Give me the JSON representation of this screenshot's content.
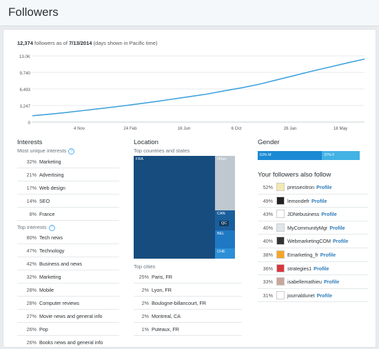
{
  "page": {
    "title": "Followers"
  },
  "summary": {
    "count": "12,374",
    "text_mid": " followers as of ",
    "date": "7/13/2014",
    "text_end": " (days shown in Pacific time)"
  },
  "chart_data": {
    "type": "line",
    "y_ticks": [
      "13.0K",
      "9,740",
      "6,493",
      "3,247",
      "0"
    ],
    "x_ticks": [
      "4 Nov",
      "24 Feb",
      "16 Jun",
      "6 Oct",
      "26 Jan",
      "18 May"
    ],
    "ylim": [
      0,
      13000
    ],
    "series": [
      {
        "values": [
          1250,
          1550,
          1900,
          2300,
          2700,
          3100,
          3550,
          4000,
          4500,
          5000,
          5500,
          6150,
          6750,
          7450,
          8300,
          9150,
          10000,
          10800,
          11600,
          12374
        ]
      }
    ],
    "color": "#3ea2dd"
  },
  "interests": {
    "title": "Interests",
    "unique_label": "Most unique interests",
    "unique": [
      {
        "pct": "32%",
        "name": "Marketing"
      },
      {
        "pct": "21%",
        "name": "Advertising"
      },
      {
        "pct": "17%",
        "name": "Web design"
      },
      {
        "pct": "14%",
        "name": "SEO"
      },
      {
        "pct": "8%",
        "name": "France"
      }
    ],
    "top_label": "Top interests",
    "top": [
      {
        "pct": "80%",
        "name": "Tech news"
      },
      {
        "pct": "47%",
        "name": "Technology"
      },
      {
        "pct": "42%",
        "name": "Business and news"
      },
      {
        "pct": "32%",
        "name": "Marketing"
      },
      {
        "pct": "28%",
        "name": "Mobile"
      },
      {
        "pct": "28%",
        "name": "Computer reviews"
      },
      {
        "pct": "27%",
        "name": "Movie news and general info"
      },
      {
        "pct": "26%",
        "name": "Pop"
      },
      {
        "pct": "26%",
        "name": "Books news and general info"
      }
    ]
  },
  "location": {
    "title": "Location",
    "sub": "Top countries and states",
    "treemap": {
      "fra": "FRA",
      "other": "Other",
      "can": "CAN",
      "qc": "QC",
      "bel": "BEL",
      "che": "CHE"
    },
    "cities_label": "Top cities",
    "cities": [
      {
        "pct": "25%",
        "name": "Paris, FR"
      },
      {
        "pct": "2%",
        "name": "Lyon, FR"
      },
      {
        "pct": "2%",
        "name": "Boulogne-billancourt, FR"
      },
      {
        "pct": "2%",
        "name": "Montreal, CA"
      },
      {
        "pct": "1%",
        "name": "Puteaux, FR"
      }
    ]
  },
  "gender": {
    "title": "Gender",
    "male": "63% M",
    "female": "37% F",
    "male_fraction": 0.63
  },
  "also_follow": {
    "title": "Your followers also follow",
    "profile_label": "Profile",
    "items": [
      {
        "pct": "52%",
        "name": "pressecitron",
        "color": "#f4e9b0"
      },
      {
        "pct": "49%",
        "name": "lemondefr",
        "color": "#222222"
      },
      {
        "pct": "43%",
        "name": "JDNebusiness",
        "color": "#ffffff"
      },
      {
        "pct": "40%",
        "name": "MyCommunityMgr",
        "color": "#dfe6ea"
      },
      {
        "pct": "40%",
        "name": "WebmarketingCOM",
        "color": "#333333"
      },
      {
        "pct": "38%",
        "name": "Emarketing_fr",
        "color": "#f5a623"
      },
      {
        "pct": "36%",
        "name": "strategies1",
        "color": "#d9363e"
      },
      {
        "pct": "33%",
        "name": "isabellemathieu",
        "color": "#c8a79a"
      },
      {
        "pct": "31%",
        "name": "journaldunet",
        "color": "#ffffff"
      }
    ]
  }
}
